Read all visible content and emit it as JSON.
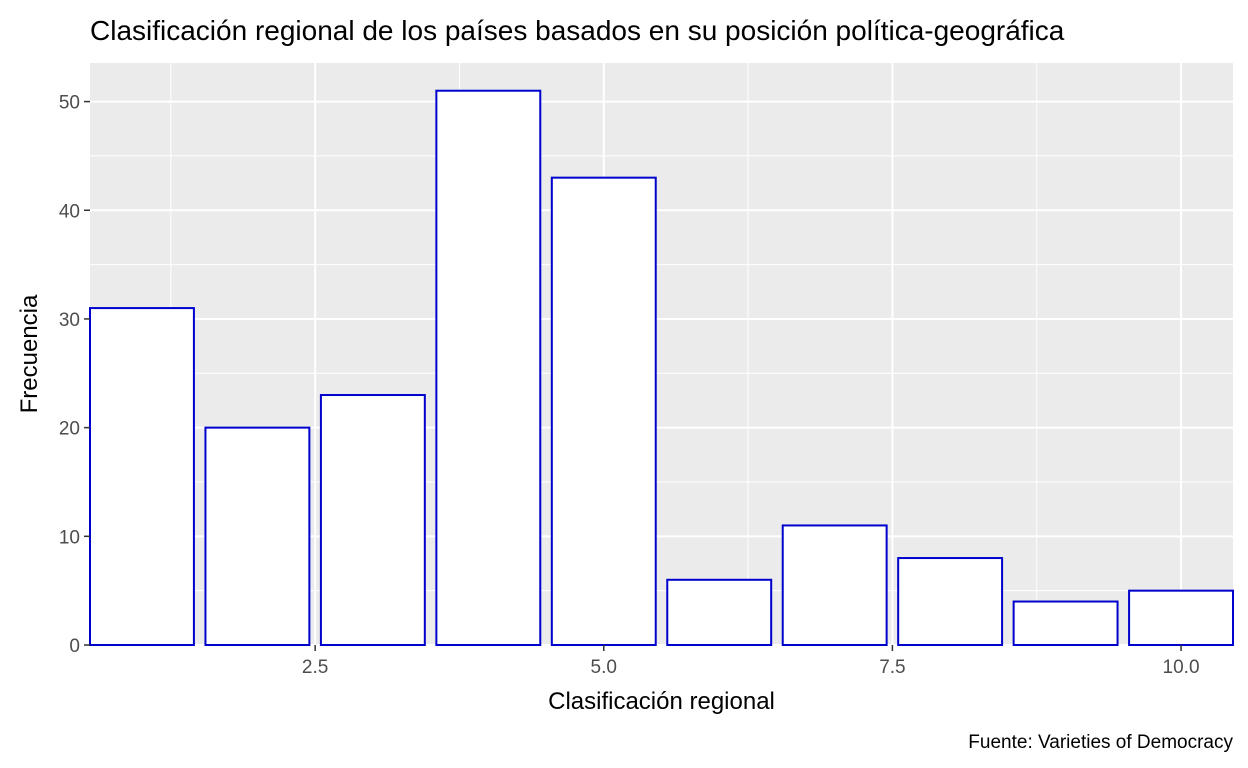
{
  "chart_data": {
    "type": "bar",
    "title": "Clasificación regional de los países basados en su posición política-geográfica",
    "xlabel": "Clasificación regional",
    "ylabel": "Frecuencia",
    "caption": "Fuente: Varieties of Democracy",
    "x": [
      1,
      2,
      3,
      4,
      5,
      6,
      7,
      8,
      9,
      10
    ],
    "values": [
      31,
      20,
      23,
      51,
      43,
      6,
      11,
      8,
      4,
      5
    ],
    "xlim": [
      0.55,
      10.45
    ],
    "ylim": [
      0,
      53.55
    ],
    "x_ticks": [
      2.5,
      5.0,
      7.5,
      10.0
    ],
    "x_tick_labels": [
      "2.5",
      "5.0",
      "7.5",
      "10.0"
    ],
    "y_ticks": [
      0,
      10,
      20,
      30,
      40,
      50
    ],
    "y_tick_labels": [
      "0",
      "10",
      "20",
      "30",
      "40",
      "50"
    ],
    "grid": true,
    "colors": {
      "panel_background": "#ebebeb",
      "grid": "#ffffff",
      "bar_fill": "#ffffff",
      "bar_outline": "#0000cd"
    }
  }
}
